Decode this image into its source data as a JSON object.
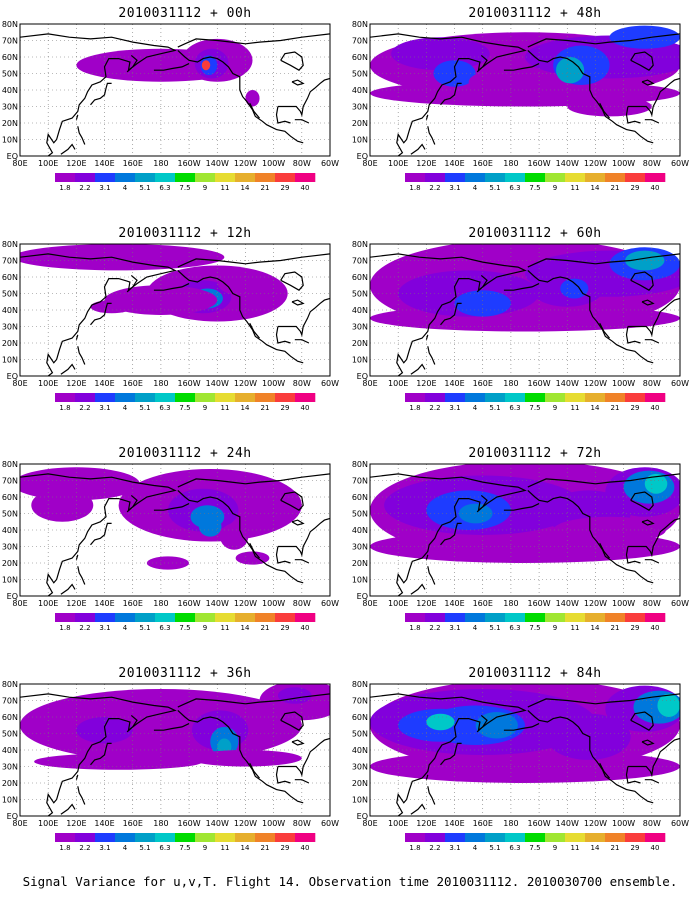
{
  "caption": "Signal Variance for u,v,T. Flight 14. Observation time 2010031112. 2010030700 ensemble.",
  "chart_data": {
    "type": "contour-map",
    "variable": "Signal Variance for u,v,T",
    "flight": "Flight 14",
    "observation_time": "2010031112",
    "ensemble": "2010030700 ensemble",
    "lon_labels": [
      "80E",
      "100E",
      "120E",
      "140E",
      "160E",
      "180",
      "160W",
      "140W",
      "120W",
      "100W",
      "80W",
      "60W"
    ],
    "lat_labels": [
      "EQ",
      "10N",
      "20N",
      "30N",
      "40N",
      "50N",
      "60N",
      "70N",
      "80N"
    ],
    "lon_range": [
      80,
      300
    ],
    "lat_range": [
      0,
      80
    ],
    "contour_levels": [
      "1.8",
      "2.2",
      "3.1",
      "4",
      "5.1",
      "6.3",
      "7.5",
      "9",
      "11",
      "14",
      "21",
      "29",
      "40"
    ],
    "level_colors": [
      "#a000c8",
      "#8200dc",
      "#1e3cff",
      "#0078dc",
      "#00a0c8",
      "#00c8c8",
      "#00dc00",
      "#a0e632",
      "#e6dc32",
      "#e6af2d",
      "#f08228",
      "#fa3c3c",
      "#f00082"
    ],
    "panels": [
      {
        "title": "2010031112 + 00h",
        "lead_hours": 0,
        "max_level": "21"
      },
      {
        "title": "2010031112 + 12h",
        "lead_hours": 12,
        "max_level": "4"
      },
      {
        "title": "2010031112 + 24h",
        "lead_hours": 24,
        "max_level": "5.1"
      },
      {
        "title": "2010031112 + 36h",
        "lead_hours": 36,
        "max_level": "5.1"
      },
      {
        "title": "2010031112 + 48h",
        "lead_hours": 48,
        "max_level": "5.1"
      },
      {
        "title": "2010031112 + 60h",
        "lead_hours": 60,
        "max_level": "6.3"
      },
      {
        "title": "2010031112 + 72h",
        "lead_hours": 72,
        "max_level": "7.5"
      },
      {
        "title": "2010031112 + 84h",
        "lead_hours": 84,
        "max_level": "7.5"
      }
    ]
  }
}
